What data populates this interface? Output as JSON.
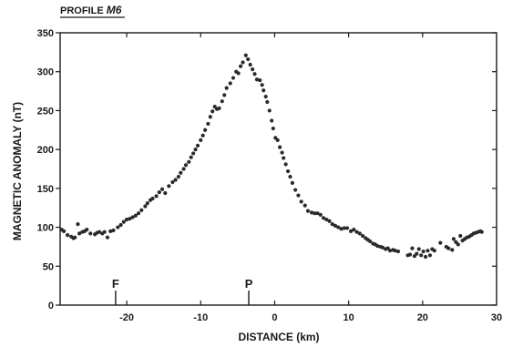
{
  "chart_data": {
    "type": "scatter",
    "title_prefix": "PROFILE ",
    "title_profile": "M6",
    "xlabel": "DISTANCE (km)",
    "ylabel": "MAGNETIC ANOMALY  (nT)",
    "xlim": [
      -29,
      30
    ],
    "ylim": [
      0,
      350
    ],
    "xticks": [
      -20,
      -10,
      0,
      10,
      20,
      30
    ],
    "yticks": [
      0,
      50,
      100,
      150,
      200,
      250,
      300,
      350
    ],
    "grid": false,
    "legend": "none",
    "color": "#2a2a2a",
    "markers": [
      {
        "label": "F",
        "x": -21.5
      },
      {
        "label": "P",
        "x": -3.5
      }
    ],
    "points": [
      [
        -28.8,
        97
      ],
      [
        -28.5,
        95
      ],
      [
        -28.0,
        90
      ],
      [
        -27.5,
        88
      ],
      [
        -27.2,
        86
      ],
      [
        -27.0,
        87
      ],
      [
        -26.6,
        104
      ],
      [
        -26.4,
        92
      ],
      [
        -26.0,
        94
      ],
      [
        -25.7,
        95
      ],
      [
        -25.4,
        97
      ],
      [
        -24.9,
        92
      ],
      [
        -24.3,
        91
      ],
      [
        -24.0,
        93
      ],
      [
        -23.7,
        94
      ],
      [
        -23.3,
        92
      ],
      [
        -23.0,
        94
      ],
      [
        -22.6,
        87
      ],
      [
        -22.2,
        95
      ],
      [
        -21.8,
        96
      ],
      [
        -21.2,
        100
      ],
      [
        -20.8,
        103
      ],
      [
        -20.4,
        107
      ],
      [
        -20.0,
        110
      ],
      [
        -19.6,
        111
      ],
      [
        -19.2,
        113
      ],
      [
        -18.8,
        115
      ],
      [
        -18.4,
        118
      ],
      [
        -18.0,
        122
      ],
      [
        -17.5,
        127
      ],
      [
        -17.2,
        131
      ],
      [
        -16.8,
        135
      ],
      [
        -16.5,
        137
      ],
      [
        -16.0,
        140
      ],
      [
        -15.6,
        145
      ],
      [
        -15.2,
        149
      ],
      [
        -14.8,
        144
      ],
      [
        -14.3,
        153
      ],
      [
        -13.8,
        158
      ],
      [
        -13.4,
        161
      ],
      [
        -13.0,
        165
      ],
      [
        -12.7,
        170
      ],
      [
        -12.3,
        175
      ],
      [
        -12.0,
        180
      ],
      [
        -11.6,
        184
      ],
      [
        -11.3,
        190
      ],
      [
        -11.0,
        195
      ],
      [
        -10.7,
        200
      ],
      [
        -10.4,
        205
      ],
      [
        -10.0,
        212
      ],
      [
        -9.7,
        218
      ],
      [
        -9.4,
        225
      ],
      [
        -9.0,
        233
      ],
      [
        -8.7,
        242
      ],
      [
        -8.4,
        249
      ],
      [
        -8.1,
        255
      ],
      [
        -7.8,
        252
      ],
      [
        -7.5,
        253
      ],
      [
        -7.1,
        262
      ],
      [
        -6.8,
        270
      ],
      [
        -6.5,
        279
      ],
      [
        -6.0,
        285
      ],
      [
        -5.6,
        292
      ],
      [
        -5.2,
        300
      ],
      [
        -4.9,
        298
      ],
      [
        -4.6,
        307
      ],
      [
        -4.3,
        312
      ],
      [
        -3.9,
        321
      ],
      [
        -3.6,
        316
      ],
      [
        -3.3,
        309
      ],
      [
        -3.0,
        303
      ],
      [
        -2.7,
        297
      ],
      [
        -2.4,
        290
      ],
      [
        -2.0,
        289
      ],
      [
        -1.7,
        283
      ],
      [
        -1.5,
        276
      ],
      [
        -1.2,
        268
      ],
      [
        -1.0,
        261
      ],
      [
        -0.7,
        250
      ],
      [
        -0.4,
        237
      ],
      [
        -0.2,
        227
      ],
      [
        0.1,
        215
      ],
      [
        0.4,
        212
      ],
      [
        0.7,
        203
      ],
      [
        1.0,
        196
      ],
      [
        1.2,
        189
      ],
      [
        1.5,
        181
      ],
      [
        1.8,
        172
      ],
      [
        2.1,
        165
      ],
      [
        2.4,
        157
      ],
      [
        2.8,
        148
      ],
      [
        3.2,
        141
      ],
      [
        3.6,
        133
      ],
      [
        4.1,
        128
      ],
      [
        4.5,
        121
      ],
      [
        5.0,
        119
      ],
      [
        5.4,
        118
      ],
      [
        5.8,
        118
      ],
      [
        6.2,
        116
      ],
      [
        6.6,
        112
      ],
      [
        7.0,
        110
      ],
      [
        7.4,
        108
      ],
      [
        7.8,
        104
      ],
      [
        8.2,
        102
      ],
      [
        8.6,
        100
      ],
      [
        9.0,
        98
      ],
      [
        9.4,
        99
      ],
      [
        9.8,
        99
      ],
      [
        10.3,
        95
      ],
      [
        10.7,
        97
      ],
      [
        11.1,
        94
      ],
      [
        11.5,
        92
      ],
      [
        11.9,
        89
      ],
      [
        12.3,
        86
      ],
      [
        12.6,
        84
      ],
      [
        12.9,
        82
      ],
      [
        13.3,
        79
      ],
      [
        13.6,
        78
      ],
      [
        13.9,
        76
      ],
      [
        14.3,
        75
      ],
      [
        14.6,
        74
      ],
      [
        15.0,
        72
      ],
      [
        15.3,
        73
      ],
      [
        15.6,
        70
      ],
      [
        16.0,
        71
      ],
      [
        16.3,
        70
      ],
      [
        16.7,
        69
      ],
      [
        18.0,
        64
      ],
      [
        18.3,
        65
      ],
      [
        18.6,
        73
      ],
      [
        18.9,
        63
      ],
      [
        19.2,
        66
      ],
      [
        19.5,
        72
      ],
      [
        19.8,
        64
      ],
      [
        20.1,
        69
      ],
      [
        20.4,
        62
      ],
      [
        20.7,
        70
      ],
      [
        21.0,
        64
      ],
      [
        21.3,
        72
      ],
      [
        21.6,
        70
      ],
      [
        22.4,
        80
      ],
      [
        23.2,
        75
      ],
      [
        23.5,
        73
      ],
      [
        24.0,
        71
      ],
      [
        24.2,
        85
      ],
      [
        24.5,
        81
      ],
      [
        24.8,
        78
      ],
      [
        25.1,
        89
      ],
      [
        25.4,
        83
      ],
      [
        25.7,
        85
      ],
      [
        26.0,
        87
      ],
      [
        26.3,
        88
      ],
      [
        26.6,
        90
      ],
      [
        26.9,
        92
      ],
      [
        27.2,
        93
      ],
      [
        27.5,
        94
      ],
      [
        27.8,
        95
      ],
      [
        28.0,
        94
      ]
    ]
  }
}
